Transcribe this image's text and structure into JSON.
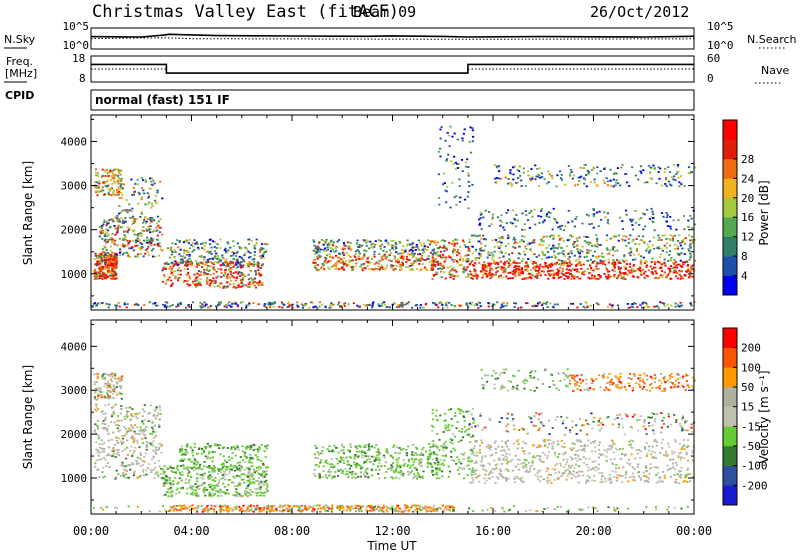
{
  "header": {
    "title": "Christmas Valley East (fitACF)",
    "beam": "Beam 09",
    "date": "26/Oct/2012"
  },
  "side_labels": {
    "nsky": "N.Sky",
    "freq": "Freq.",
    "freq_unit": "[MHz]",
    "cpid": "CPID",
    "nsearch": "N.Search",
    "nave": "Nave",
    "cpid_text": "normal (fast) 151 IF"
  },
  "colors": {
    "power": [
      "#0000ee",
      "#1d4fae",
      "#2f7f6b",
      "#54a84f",
      "#a6c93d",
      "#f0b21e",
      "#f06b10",
      "#e01e0a",
      "#ff0000"
    ],
    "velocity": [
      "#1a1ad0",
      "#2f4f9f",
      "#347a30",
      "#66cc33",
      "#c0c0b0",
      "#b0b0a0",
      "#ff9900",
      "#ff5500",
      "#ff0000"
    ]
  },
  "chart_data": [
    {
      "type": "line",
      "panel": "noise",
      "series": [
        {
          "name": "N.Sky",
          "x": [
            0,
            1,
            2,
            2.9,
            3.1,
            5,
            8,
            11,
            12,
            14,
            15,
            16,
            18,
            20,
            22,
            24
          ],
          "y": [
            1000,
            900,
            800,
            2500,
            4000,
            1800,
            1400,
            1200,
            1500,
            1100,
            800,
            900,
            1000,
            900,
            800,
            1200
          ]
        },
        {
          "name": "N.Search",
          "x": [
            0,
            3,
            4,
            8,
            12,
            15,
            20,
            24
          ],
          "y": [
            300,
            500,
            280,
            250,
            220,
            200,
            230,
            260
          ]
        }
      ],
      "ylim_log10": [
        0,
        5
      ],
      "ytick_labels": [
        "10^0",
        "10^5"
      ]
    },
    {
      "type": "line",
      "panel": "freq_nave",
      "series": [
        {
          "name": "Freq.",
          "x": [
            0,
            3,
            3,
            15,
            15,
            24
          ],
          "y": [
            14.9,
            14.9,
            11.3,
            11.3,
            14.9,
            14.9
          ]
        },
        {
          "name": "Nave",
          "x": [
            0,
            3,
            3,
            15,
            15,
            24
          ],
          "y": [
            30,
            30,
            20,
            20,
            30,
            30
          ]
        }
      ],
      "left_ticks": [
        "18",
        "8"
      ],
      "right_ticks": [
        "60",
        "0"
      ]
    },
    {
      "type": "heatmap",
      "panel": "power",
      "x_range_hours": [
        0,
        24
      ],
      "ylabel": "Slant Range [km]",
      "ylim": [
        180,
        4600
      ],
      "yticks": [
        1000,
        2000,
        3000,
        4000
      ],
      "colorbar_label": "Power [dB]",
      "colorbar_ticks": [
        "4",
        "8",
        "12",
        "16",
        "20",
        "24",
        "28"
      ]
    },
    {
      "type": "heatmap",
      "panel": "velocity",
      "x_range_hours": [
        0,
        24
      ],
      "ylabel": "Slant Range [km]",
      "ylim": [
        180,
        4600
      ],
      "yticks": [
        1000,
        2000,
        3000,
        4000
      ],
      "xlabel": "Time UT",
      "xtick_labels": [
        "00:00",
        "04:00",
        "08:00",
        "12:00",
        "16:00",
        "20:00",
        "00:00"
      ],
      "colorbar_label": "Velocity [m s⁻¹]",
      "colorbar_ticks": [
        "200",
        "100",
        "50",
        "15",
        "-15",
        "-50",
        "-100",
        "-200"
      ]
    }
  ]
}
